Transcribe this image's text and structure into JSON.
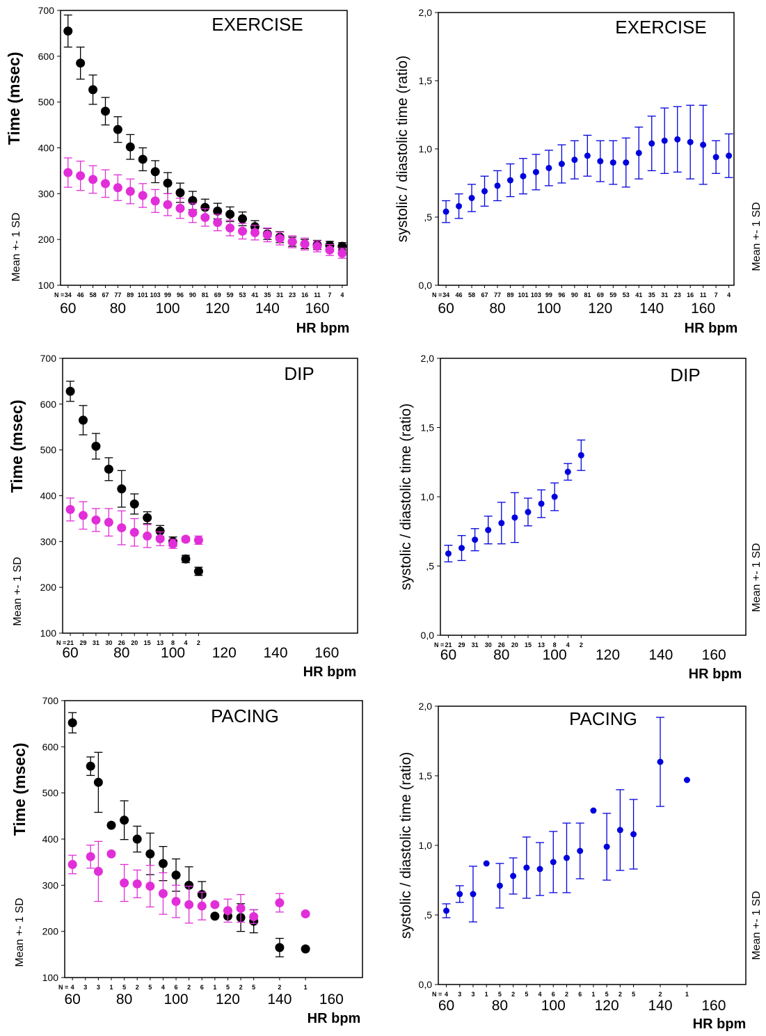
{
  "chart_data": [
    {
      "type": "scatter",
      "title": "EXERCISE",
      "ylabel": "Time (msec)",
      "side_label": "Mean +- 1 SD",
      "xlabel": "HR bpm",
      "xlim": [
        57,
        172
      ],
      "ylim": [
        100,
        700
      ],
      "xticks": [
        "60",
        "80",
        "100",
        "120",
        "140",
        "160"
      ],
      "yticks": [
        "100",
        "200",
        "300",
        "400",
        "500",
        "600",
        "700"
      ],
      "n_prefix": "N =",
      "n_x": [
        60,
        65,
        70,
        75,
        80,
        85,
        90,
        95,
        100,
        105,
        110,
        115,
        120,
        125,
        130,
        135,
        140,
        145,
        150,
        155,
        160,
        165,
        170
      ],
      "n_labels": [
        "34",
        "46",
        "58",
        "67",
        "77",
        "89",
        "101",
        "103",
        "99",
        "96",
        "90",
        "81",
        "69",
        "59",
        "53",
        "41",
        "35",
        "31",
        "23",
        "16",
        "11",
        "7",
        "4"
      ],
      "series": [
        {
          "color": "#000000",
          "x": [
            60,
            65,
            70,
            75,
            80,
            85,
            90,
            95,
            100,
            105,
            110,
            115,
            120,
            125,
            130,
            135,
            140,
            145,
            150,
            155,
            160,
            165,
            170
          ],
          "y": [
            655,
            585,
            527,
            480,
            440,
            402,
            375,
            348,
            323,
            302,
            285,
            270,
            262,
            255,
            245,
            228,
            212,
            205,
            195,
            190,
            188,
            187,
            185
          ],
          "sd": [
            35,
            35,
            32,
            30,
            28,
            27,
            25,
            24,
            23,
            21,
            20,
            18,
            17,
            16,
            15,
            13,
            12,
            12,
            10,
            10,
            10,
            9,
            8
          ]
        },
        {
          "color": "#e12ed8",
          "x": [
            60,
            65,
            70,
            75,
            80,
            85,
            90,
            95,
            100,
            105,
            110,
            115,
            120,
            125,
            130,
            135,
            140,
            145,
            150,
            155,
            160,
            165,
            170
          ],
          "y": [
            346,
            339,
            331,
            322,
            313,
            305,
            296,
            284,
            276,
            268,
            258,
            248,
            237,
            225,
            218,
            215,
            210,
            202,
            195,
            190,
            185,
            177,
            170
          ],
          "sd": [
            32,
            32,
            30,
            30,
            28,
            27,
            26,
            25,
            24,
            22,
            21,
            19,
            18,
            17,
            17,
            16,
            15,
            14,
            13,
            13,
            12,
            12,
            11
          ]
        }
      ]
    },
    {
      "type": "scatter",
      "title": "EXERCISE",
      "ylabel": "systolic / diastolic time (ratio)",
      "side_label": "Mean +- 1 SD",
      "xlabel": "HR bpm",
      "xlim": [
        57,
        172
      ],
      "ylim": [
        0,
        2
      ],
      "xticks": [
        "60",
        "80",
        "100",
        "120",
        "140",
        "160"
      ],
      "yticks": [
        "0,0",
        ",5",
        "1,0",
        "1,5",
        "2,0"
      ],
      "n_prefix": "N =",
      "n_x": [
        60,
        65,
        70,
        75,
        80,
        85,
        90,
        95,
        100,
        105,
        110,
        115,
        120,
        125,
        130,
        135,
        140,
        145,
        150,
        155,
        160,
        165,
        170
      ],
      "n_labels": [
        "34",
        "46",
        "58",
        "67",
        "77",
        "89",
        "101",
        "103",
        "99",
        "96",
        "90",
        "81",
        "69",
        "59",
        "53",
        "41",
        "35",
        "31",
        "23",
        "16",
        "11",
        "7",
        "4"
      ],
      "series": [
        {
          "color": "#0000dd",
          "x": [
            60,
            65,
            70,
            75,
            80,
            85,
            90,
            95,
            100,
            105,
            110,
            115,
            120,
            125,
            130,
            135,
            140,
            145,
            150,
            155,
            160,
            165,
            170
          ],
          "y": [
            0.54,
            0.58,
            0.64,
            0.69,
            0.73,
            0.77,
            0.8,
            0.83,
            0.86,
            0.89,
            0.92,
            0.95,
            0.91,
            0.9,
            0.9,
            0.97,
            1.04,
            1.06,
            1.07,
            1.05,
            1.03,
            0.94,
            0.95
          ],
          "sd": [
            0.08,
            0.09,
            0.1,
            0.11,
            0.11,
            0.12,
            0.13,
            0.13,
            0.13,
            0.14,
            0.14,
            0.15,
            0.15,
            0.16,
            0.18,
            0.19,
            0.2,
            0.24,
            0.24,
            0.27,
            0.29,
            0.12,
            0.16
          ]
        }
      ]
    },
    {
      "type": "scatter",
      "title": "DIP",
      "ylabel": "Time (msec)",
      "side_label": "Mean +- 1 SD",
      "xlabel": "HR bpm",
      "xlim": [
        57,
        172
      ],
      "ylim": [
        100,
        700
      ],
      "xticks": [
        "60",
        "80",
        "100",
        "120",
        "140",
        "160"
      ],
      "yticks": [
        "100",
        "200",
        "300",
        "400",
        "500",
        "600",
        "700"
      ],
      "n_prefix": "N =",
      "n_x": [
        60,
        65,
        70,
        75,
        80,
        85,
        90,
        95,
        100,
        105,
        110
      ],
      "n_labels": [
        "21",
        "29",
        "31",
        "30",
        "26",
        "20",
        "15",
        "13",
        "8",
        "4",
        "2"
      ],
      "series": [
        {
          "color": "#000000",
          "x": [
            60,
            65,
            70,
            75,
            80,
            85,
            90,
            95,
            100,
            105,
            110
          ],
          "y": [
            628,
            565,
            508,
            458,
            415,
            382,
            352,
            323,
            300,
            262,
            235
          ],
          "sd": [
            22,
            32,
            28,
            25,
            40,
            22,
            13,
            12,
            10,
            8,
            9
          ]
        },
        {
          "color": "#e12ed8",
          "x": [
            60,
            65,
            70,
            75,
            80,
            85,
            90,
            95,
            100,
            105,
            110
          ],
          "y": [
            370,
            357,
            347,
            342,
            330,
            320,
            312,
            306,
            295,
            305,
            303
          ],
          "sd": [
            25,
            30,
            25,
            30,
            37,
            30,
            25,
            15,
            10,
            5,
            9
          ]
        }
      ]
    },
    {
      "type": "scatter",
      "title": "DIP",
      "ylabel": "systolic / diastolic time (ratio)",
      "side_label": "Mean +- 1 SD",
      "xlabel": "HR bpm",
      "xlim": [
        57,
        172
      ],
      "ylim": [
        0,
        2
      ],
      "xticks": [
        "60",
        "80",
        "100",
        "120",
        "140",
        "160"
      ],
      "yticks": [
        "0,0",
        ",5",
        "1,0",
        "1,5",
        "2,0"
      ],
      "n_prefix": "N =",
      "n_x": [
        60,
        65,
        70,
        75,
        80,
        85,
        90,
        95,
        100,
        105,
        110
      ],
      "n_labels": [
        "21",
        "29",
        "31",
        "30",
        "26",
        "20",
        "15",
        "13",
        "8",
        "4",
        "2"
      ],
      "series": [
        {
          "color": "#0000dd",
          "x": [
            60,
            65,
            70,
            75,
            80,
            85,
            90,
            95,
            100,
            105,
            110
          ],
          "y": [
            0.59,
            0.63,
            0.69,
            0.76,
            0.81,
            0.85,
            0.89,
            0.95,
            1.0,
            1.18,
            1.3
          ],
          "sd": [
            0.06,
            0.09,
            0.08,
            0.1,
            0.15,
            0.18,
            0.1,
            0.1,
            0.1,
            0.06,
            0.11
          ]
        }
      ]
    },
    {
      "type": "scatter",
      "title": "PACING",
      "ylabel": "Time (msec)",
      "side_label": "Mean +- 1 SD",
      "xlabel": "HR bpm",
      "xlim": [
        57,
        172
      ],
      "ylim": [
        100,
        700
      ],
      "xticks": [
        "60",
        "80",
        "100",
        "120",
        "140",
        "160"
      ],
      "yticks": [
        "100",
        "200",
        "300",
        "400",
        "500",
        "600",
        "700"
      ],
      "n_prefix": "N =",
      "n_x": [
        60,
        65,
        70,
        75,
        80,
        85,
        90,
        95,
        100,
        105,
        110,
        115,
        120,
        125,
        130,
        140,
        150
      ],
      "n_labels": [
        "4",
        "3",
        "3",
        "1",
        "5",
        "2",
        "5",
        "4",
        "6",
        "2",
        "6",
        "1",
        "5",
        "2",
        "5",
        "2",
        "1"
      ],
      "series": [
        {
          "color": "#000000",
          "x": [
            60,
            67,
            70,
            75,
            80,
            85,
            90,
            95,
            100,
            105,
            110,
            115,
            120,
            125,
            130,
            140,
            150
          ],
          "y": [
            652,
            558,
            523,
            430,
            441,
            400,
            368,
            347,
            322,
            300,
            280,
            233,
            233,
            230,
            222,
            165,
            162
          ],
          "sd": [
            22,
            20,
            65,
            0,
            42,
            28,
            45,
            37,
            35,
            40,
            28,
            0,
            0,
            30,
            25,
            20,
            0
          ]
        },
        {
          "color": "#e12ed8",
          "x": [
            60,
            67,
            70,
            75,
            80,
            85,
            90,
            95,
            100,
            105,
            110,
            115,
            120,
            125,
            130,
            140,
            150
          ],
          "y": [
            345,
            362,
            330,
            368,
            305,
            303,
            298,
            282,
            265,
            258,
            255,
            258,
            245,
            250,
            232,
            262,
            238
          ],
          "sd": [
            20,
            25,
            65,
            0,
            40,
            30,
            45,
            45,
            35,
            40,
            30,
            0,
            25,
            30,
            15,
            20,
            0
          ]
        }
      ]
    },
    {
      "type": "scatter",
      "title": "PACING",
      "ylabel": "systolic / diastolic time (ratio)",
      "side_label": "Mean +- 1 SD",
      "xlabel": "HR bpm",
      "xlim": [
        57,
        172
      ],
      "ylim": [
        0,
        2
      ],
      "xticks": [
        "60",
        "80",
        "100",
        "120",
        "140",
        "160"
      ],
      "yticks": [
        "0,0",
        ",5",
        "1,0",
        "1,5",
        "2,0"
      ],
      "n_prefix": "N =",
      "n_x": [
        60,
        65,
        70,
        75,
        80,
        85,
        90,
        95,
        100,
        105,
        110,
        115,
        120,
        125,
        130,
        140,
        150
      ],
      "n_labels": [
        "4",
        "3",
        "3",
        "1",
        "5",
        "2",
        "5",
        "4",
        "6",
        "2",
        "6",
        "1",
        "5",
        "2",
        "5",
        "2",
        "1"
      ],
      "series": [
        {
          "color": "#0000dd",
          "x": [
            60,
            65,
            70,
            75,
            80,
            85,
            90,
            95,
            100,
            105,
            110,
            115,
            120,
            125,
            130,
            140,
            150
          ],
          "y": [
            0.53,
            0.65,
            0.65,
            0.87,
            0.71,
            0.78,
            0.84,
            0.83,
            0.88,
            0.91,
            0.96,
            1.25,
            0.99,
            1.11,
            1.08,
            1.6,
            1.47
          ],
          "sd": [
            0.05,
            0.06,
            0.2,
            0,
            0.16,
            0.13,
            0.22,
            0.19,
            0.22,
            0.25,
            0.2,
            0,
            0.24,
            0.29,
            0.25,
            0.32,
            0
          ]
        }
      ]
    }
  ]
}
